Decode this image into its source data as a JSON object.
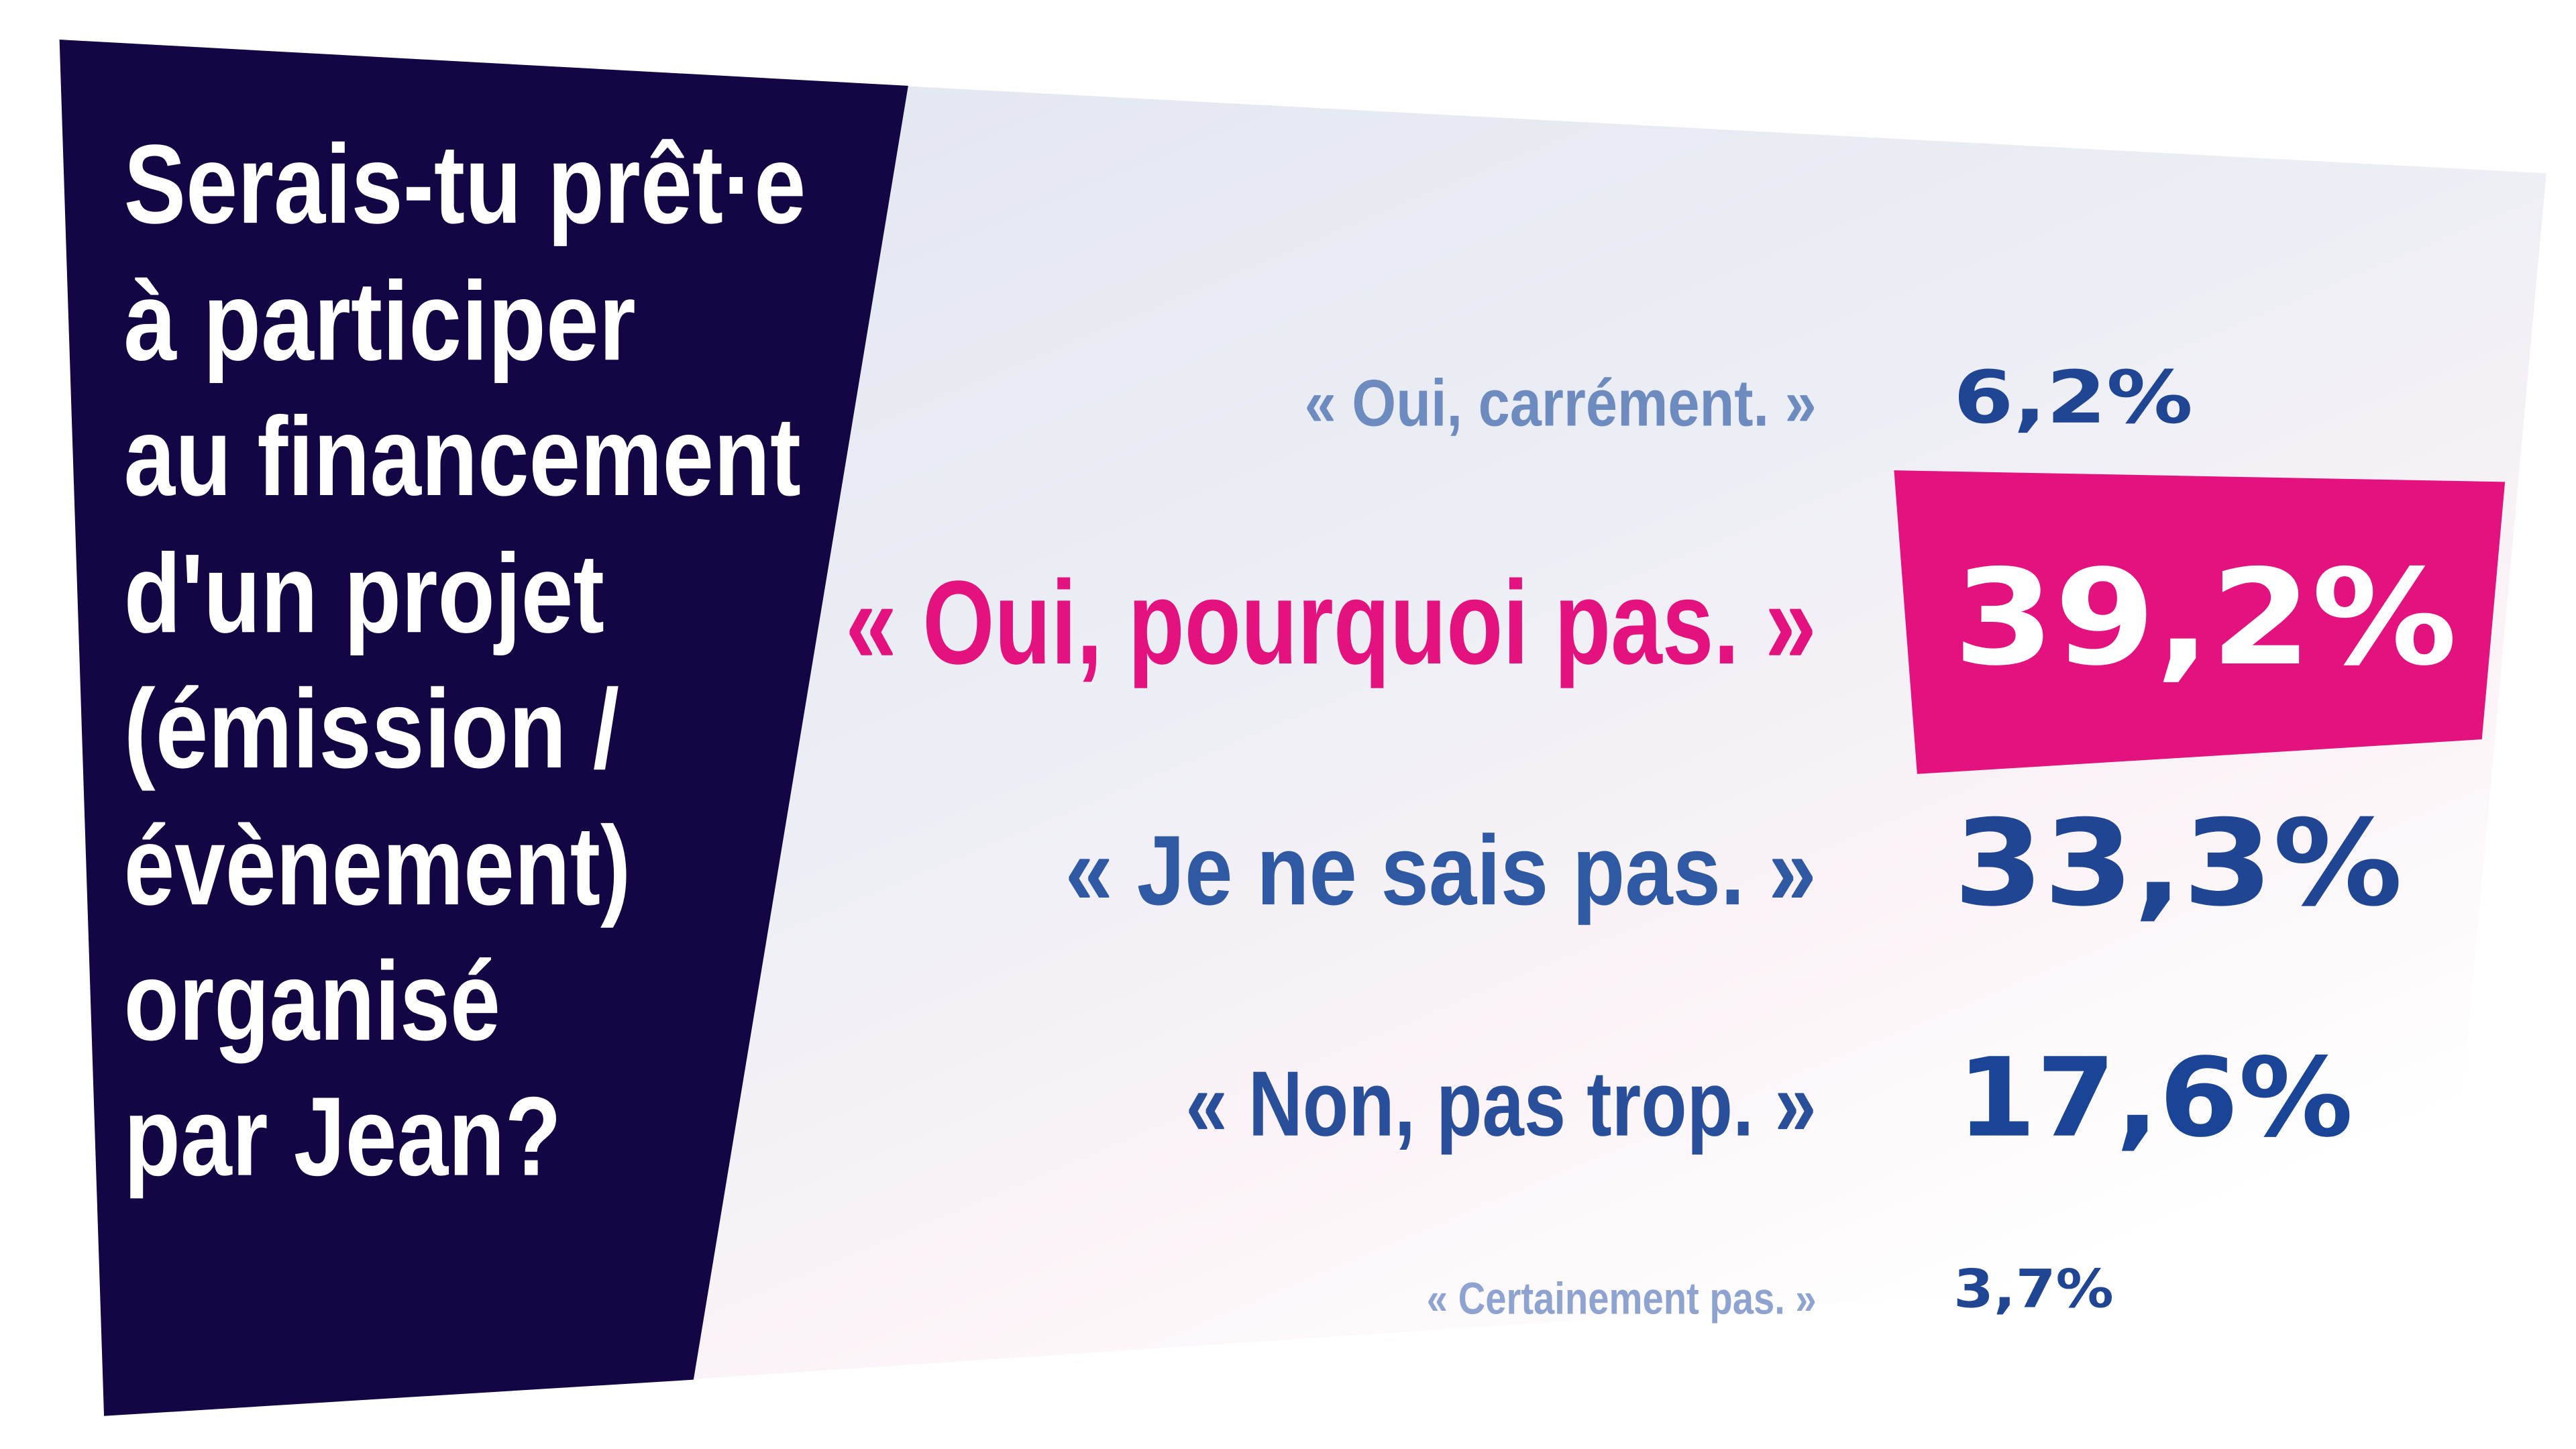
{
  "question": {
    "lines": [
      "Serais-tu prêt·e",
      "à participer",
      "au financement",
      "d'un projet",
      "(émission /",
      "évènement)",
      "organisé",
      "par Jean?"
    ]
  },
  "answers": [
    {
      "label": "« Oui, carrément. »",
      "percent": "6,2%",
      "value": 6.2
    },
    {
      "label": "« Oui, pourquoi pas. »",
      "percent": "39,2%",
      "value": 39.2,
      "highlighted": true
    },
    {
      "label": "« Je ne sais pas. »",
      "percent": "33,3%",
      "value": 33.3
    },
    {
      "label": "« Non, pas trop. »",
      "percent": "17,6%",
      "value": 17.6
    },
    {
      "label": "« Certainement pas. »",
      "percent": "3,7%",
      "value": 3.7
    }
  ],
  "colors": {
    "question_panel": "#140544",
    "highlight": "#e3127e",
    "answer_blue": "#1f4593",
    "answer_light": "#6e8bbf"
  }
}
